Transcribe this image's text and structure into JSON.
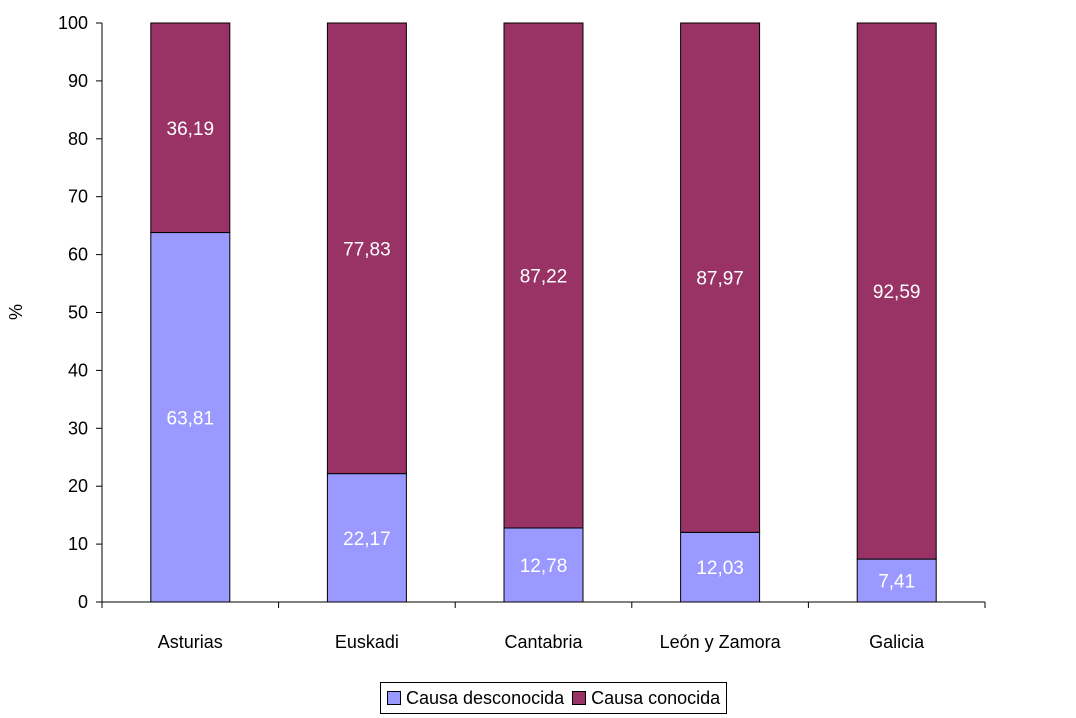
{
  "chart_data": {
    "type": "bar",
    "stacked": true,
    "categories": [
      "Asturias",
      "Euskadi",
      "Cantabria",
      "León y Zamora",
      "Galicia"
    ],
    "series": [
      {
        "name": "Causa desconocida",
        "values": [
          63.81,
          22.17,
          12.78,
          12.03,
          7.41
        ],
        "labels": [
          "63,81",
          "22,17",
          "12,78",
          "12,03",
          "7,41"
        ],
        "color": "#9999ff"
      },
      {
        "name": "Causa conocida",
        "values": [
          36.19,
          77.83,
          87.22,
          87.97,
          92.59
        ],
        "labels": [
          "36,19",
          "77,83",
          "87,22",
          "87,97",
          "92,59"
        ],
        "color": "#993366"
      }
    ],
    "ylabel": "%",
    "xlabel": "",
    "ylim": [
      0,
      100
    ],
    "yticks": [
      0,
      10,
      20,
      30,
      40,
      50,
      60,
      70,
      80,
      90,
      100
    ],
    "grid": false,
    "legend_position": "bottom"
  }
}
